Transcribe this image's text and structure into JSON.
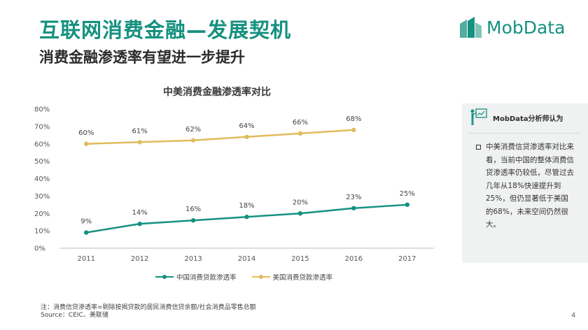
{
  "header": {
    "title": "互联网消费金融—发展契机",
    "subtitle": "消费金融渗透率有望进一步提升"
  },
  "logo": {
    "text": "MobData",
    "icon": "mobdata-logo-icon"
  },
  "chart_data": {
    "type": "line",
    "title": "中美消费金融渗透率对比",
    "categories": [
      "2011",
      "2012",
      "2013",
      "2014",
      "2015",
      "2016",
      "2017"
    ],
    "yticks": [
      "0%",
      "10%",
      "20%",
      "30%",
      "40%",
      "50%",
      "60%",
      "70%",
      "80%"
    ],
    "ylim": [
      0,
      80
    ],
    "xlabel": "",
    "ylabel": "",
    "grid": false,
    "legend": "bottom",
    "series": [
      {
        "name": "中国消费贷款渗透率",
        "color": "#15917f",
        "values": [
          9,
          14,
          16,
          18,
          20,
          23,
          25
        ],
        "labels": [
          "9%",
          "14%",
          "16%",
          "18%",
          "20%",
          "23%",
          "25%"
        ]
      },
      {
        "name": "美国消费贷款渗透率",
        "color": "#e0bc5c",
        "values": [
          60,
          61,
          62,
          64,
          66,
          68,
          null
        ],
        "labels": [
          "60%",
          "61%",
          "62%",
          "64%",
          "66%",
          "68%",
          ""
        ]
      }
    ]
  },
  "panel": {
    "heading": "MobData分析师认为",
    "icon": "analyst-presentation-icon",
    "body": "中美消费信贷渗透率对比来看，当前中国的整体消费信贷渗透率仍较低，尽管过去几年从18%快速提升到25%，但仍显著低于美国的68%，未来空间仍然很大。"
  },
  "footnote": {
    "line1": "注：消费信贷渗透率=剔除按揭贷款的居民消费信贷余额/社会消费品零售总额",
    "line2": "Source：CEIC、美联储"
  },
  "page_number": "4",
  "colors": {
    "brand": "#15917f",
    "china_series": "#15917f",
    "us_series": "#e0bc5c",
    "panel_bg": "#f0f1f1"
  }
}
